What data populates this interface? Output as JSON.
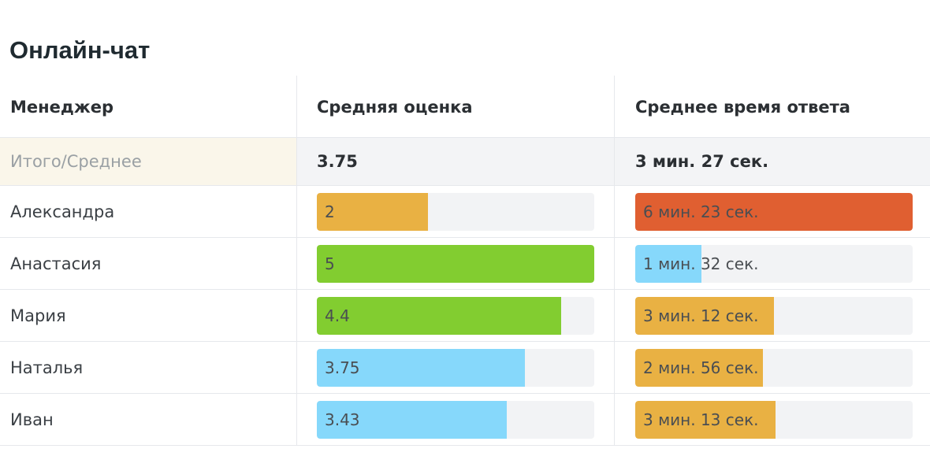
{
  "title": "Онлайн-чат",
  "columns": {
    "manager": "Менеджер",
    "avg_rating": "Средняя оценка",
    "avg_response": "Среднее время ответа"
  },
  "total": {
    "label": "Итого/Среднее",
    "avg_rating": "3.75",
    "avg_response": "3 мин. 27 сек."
  },
  "colors": {
    "orange": "#e9b143",
    "green": "#82cd30",
    "blue": "#86d8fb",
    "red": "#e05f31"
  },
  "rows": [
    {
      "name": "Александра",
      "rating": {
        "text": "2",
        "fraction": 0.4,
        "color": "#e9b143"
      },
      "response": {
        "text": "6 мин. 23 сек.",
        "fraction": 1.0,
        "color": "#e05f31"
      }
    },
    {
      "name": "Анастасия",
      "rating": {
        "text": "5",
        "fraction": 1.0,
        "color": "#82cd30"
      },
      "response": {
        "text": "1 мин. 32 сек.",
        "fraction": 0.24,
        "color": "#86d8fb"
      }
    },
    {
      "name": "Мария",
      "rating": {
        "text": "4.4",
        "fraction": 0.88,
        "color": "#82cd30"
      },
      "response": {
        "text": "3 мин. 12 сек.",
        "fraction": 0.5,
        "color": "#e9b143"
      }
    },
    {
      "name": "Наталья",
      "rating": {
        "text": "3.75",
        "fraction": 0.75,
        "color": "#86d8fb"
      },
      "response": {
        "text": "2 мин. 56 сек.",
        "fraction": 0.46,
        "color": "#e9b143"
      }
    },
    {
      "name": "Иван",
      "rating": {
        "text": "3.43",
        "fraction": 0.686,
        "color": "#86d8fb"
      },
      "response": {
        "text": "3 мин. 13 сек.",
        "fraction": 0.505,
        "color": "#e9b143"
      }
    }
  ]
}
